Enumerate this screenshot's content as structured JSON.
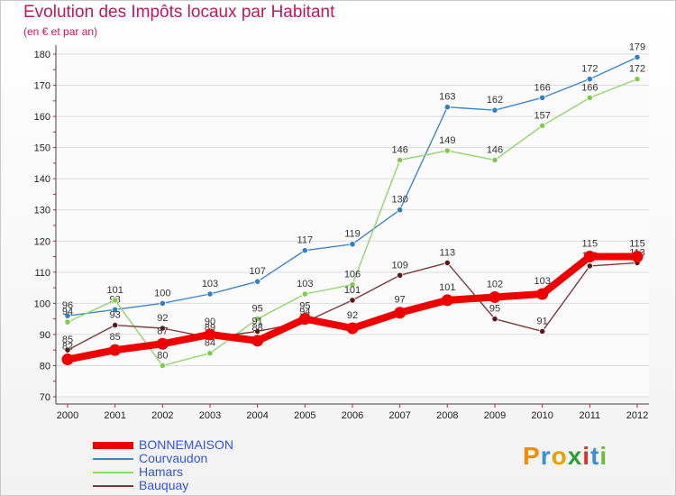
{
  "title": "Evolution des Impôts locaux par Habitant",
  "subtitle": "(en € et par an)",
  "brand": "Proxiti",
  "chart_data": {
    "type": "line",
    "title": "Evolution des Impôts locaux par Habitant",
    "subtitle": "(en € et par an)",
    "xlabel": "",
    "ylabel": "",
    "x": [
      "2000",
      "2001",
      "2002",
      "2003",
      "2004",
      "2005",
      "2006",
      "2007",
      "2008",
      "2009",
      "2010",
      "2011",
      "2012"
    ],
    "ylim": [
      70,
      180
    ],
    "yticks": [
      70,
      80,
      90,
      100,
      110,
      120,
      130,
      140,
      150,
      160,
      170,
      180
    ],
    "grid": "horizontal",
    "legend_position": "bottom-left",
    "series": [
      {
        "name": "Courvaudon",
        "color": "#3f86c8",
        "marker": "#2f7fc4",
        "values": [
          96,
          98,
          100,
          103,
          107,
          117,
          119,
          130,
          163,
          162,
          166,
          172,
          179
        ]
      },
      {
        "name": "Hamars",
        "color": "#8fd66d",
        "marker": "#7ccd4b",
        "values": [
          94,
          101,
          80,
          84,
          95,
          103,
          106,
          146,
          149,
          146,
          157,
          166,
          172
        ]
      },
      {
        "name": "Bauquay",
        "color": "#7d3a3a",
        "marker": "#5b1a1a",
        "values": [
          85,
          93,
          92,
          89,
          91,
          94,
          101,
          109,
          113,
          95,
          91,
          112,
          113
        ]
      },
      {
        "name": "BONNEMAISON",
        "color": "#ee0000",
        "marker": "#ee0000",
        "values": [
          82,
          85,
          87,
          90,
          88,
          95,
          92,
          97,
          101,
          102,
          103,
          115,
          115
        ],
        "emphasis": true
      }
    ]
  }
}
